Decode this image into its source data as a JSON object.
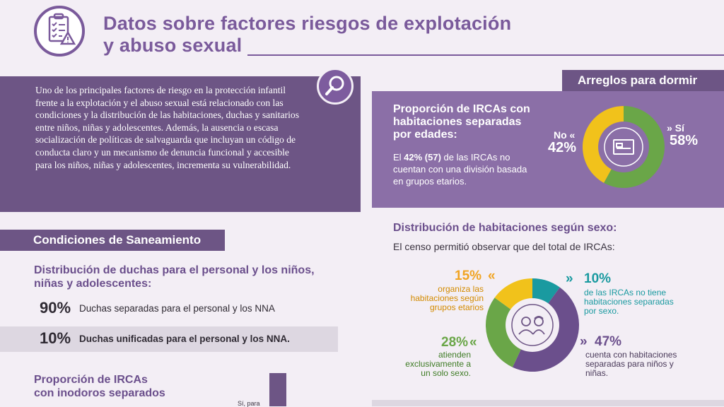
{
  "header": {
    "title_line1": "Datos sobre factores riesgos de explotación",
    "title_line2": "y abuso sexual",
    "icon": "checklist-warning-icon"
  },
  "intro": {
    "text": "Uno de los principales factores de riesgo en la protección infantil frente a la explotación y el abuso sexual está relacionado con las condiciones y la distribución de las habitaciones, duchas y sanitarios entre niños, niñas y adolescentes. Además, la ausencia o escasa socialización de políticas de salvaguarda que incluyan un código de conducta claro y un mecanismo de denuncia funcional y accesible para los niños, niñas y adolescentes, incrementa su vulnerabilidad.",
    "icon": "magnifier-icon"
  },
  "sanitation": {
    "heading": "Condiciones de Saneamiento",
    "showers_title": "Distribución de duchas para el personal y los niños, niñas y adolescentes:",
    "rows": [
      {
        "pct": "90%",
        "desc": "Duchas separadas para el personal y los NNA"
      },
      {
        "pct": "10%",
        "desc": "Duchas unificadas para el personal y los NNA."
      }
    ],
    "toilets_title_line1": "Proporción de IRCAs",
    "toilets_title_line2": "con inodoros separados",
    "toilet_bar_label": "Sí, para"
  },
  "sleeping": {
    "heading": "Arreglos para dormir",
    "age_title": "Proporción de IRCAs con habitaciones separadas por edades:",
    "age_text_pre": "El ",
    "age_text_bold": "42% (57)",
    "age_text_post": " de las IRCAs no cuentan con una división basada en grupos etarios.",
    "no_label": "No",
    "no_pct": "42%",
    "si_label": "Sí",
    "si_pct": "58%",
    "center_icon": "bed-icon",
    "donut": {
      "no": 42,
      "si": 58
    }
  },
  "sex_distribution": {
    "title": "Distribución de habitaciones según sexo:",
    "intro": "El censo permitió observar que del total de IRCAs:",
    "center_icon": "boy-girl-icon",
    "items": [
      {
        "pct": "15%",
        "text": "organiza las habitaciones según grupos etarios"
      },
      {
        "pct": "10%",
        "text": "de las IRCAs no tiene habitaciones separadas por sexo."
      },
      {
        "pct": "28%",
        "text": "atienden exclusivamente a un solo sexo."
      },
      {
        "pct": "47%",
        "text": "cuenta con habitaciones separadas para niños y niñas."
      }
    ],
    "donut": [
      {
        "key": "no_separadas",
        "value": 10,
        "color": "#1a9aa0"
      },
      {
        "key": "separadas",
        "value": 47,
        "color": "#6b4f8c"
      },
      {
        "key": "un_solo_sexo",
        "value": 28,
        "color": "#6aa648"
      },
      {
        "key": "grupos_etarios",
        "value": 15,
        "color": "#f1c21b"
      }
    ]
  },
  "colors": {
    "purple": "#6d5585",
    "light_purple": "#8b6fa7",
    "yellow": "#f1c21b",
    "green": "#6aa648",
    "teal": "#1a9aa0"
  }
}
